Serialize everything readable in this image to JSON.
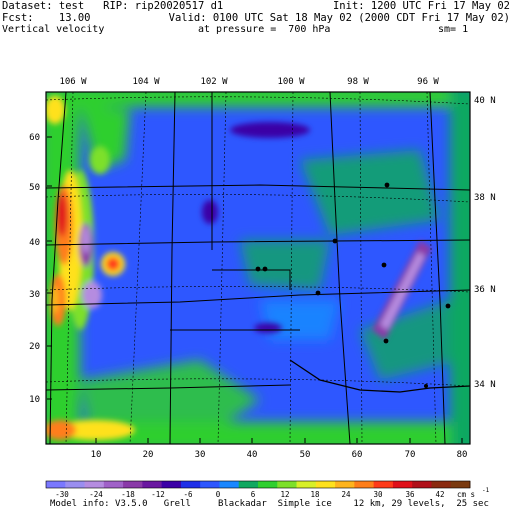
{
  "header": {
    "dataset_line": "Dataset: test   RIP: rip20020517 d1",
    "fcst_line": "Fcst:    13.00",
    "field_line": "Vertical velocity",
    "init_line": "Init: 1200 UTC Fri 17 May 02",
    "valid_line": "Valid: 0100 UTC Sat 18 May 02 (2000 CDT Fri 17 May 02)",
    "pressure_line": "at pressure =  700 hPa",
    "smooth_line": "sm= 1"
  },
  "map": {
    "top_lon_labels": [
      "106 W",
      "104 W",
      "102 W",
      "100 W",
      "98 W",
      "96 W"
    ],
    "right_lat_labels": [
      "40 N",
      "38 N",
      "36 N",
      "34 N"
    ],
    "left_grid_labels": [
      "60",
      "50",
      "40",
      "30",
      "20",
      "10"
    ],
    "bottom_grid_labels": [
      "10",
      "20",
      "30",
      "40",
      "50",
      "60",
      "70",
      "80"
    ]
  },
  "colorbar": {
    "labels": [
      "-30",
      "-24",
      "-18",
      "-12",
      "-6",
      "0",
      "6",
      "12",
      "18",
      "24",
      "30",
      "36",
      "42"
    ],
    "units": "cm s",
    "units_exp": "-1",
    "colors": [
      "#7a78ff",
      "#9a8ef0",
      "#b58ce0",
      "#a062c8",
      "#8a3aa8",
      "#6a18a0",
      "#3b00a6",
      "#1f2fe8",
      "#2e57ff",
      "#1a87ff",
      "#10a860",
      "#2fcf2f",
      "#7de02a",
      "#d8f028",
      "#ffe11e",
      "#ffb41e",
      "#ff7e1a",
      "#ff3a1a",
      "#e0101a",
      "#b0101a",
      "#8a2a10",
      "#7a3a10"
    ]
  },
  "footer": {
    "model_info": "Model info: V3.5.0   Grell     Blackadar  Simple ice    12 km, 29 levels,  25 sec"
  }
}
